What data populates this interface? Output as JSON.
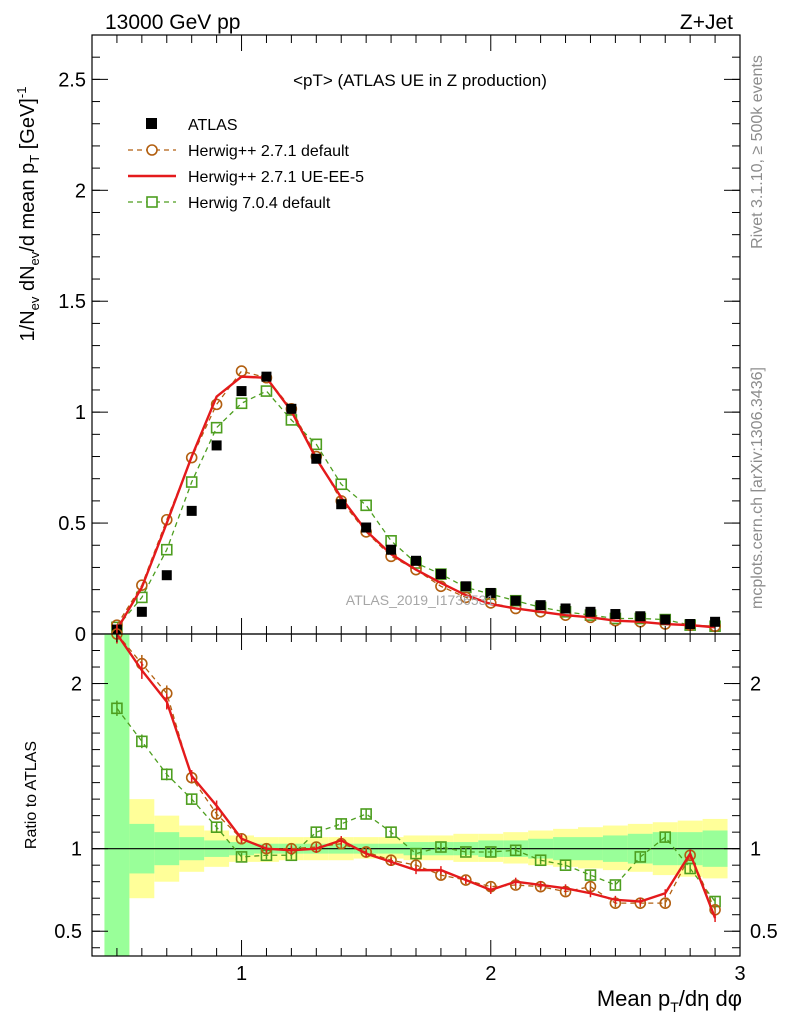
{
  "header": {
    "left": "13000 GeV pp",
    "right": "Z+Jet"
  },
  "side_labels": {
    "rivet": "Rivet 3.1.10, ≥ 500k events",
    "mcplots": "mcplots.cern.ch [arXiv:1306.3436]"
  },
  "watermark": "ATLAS_2019_I1736531",
  "chart_data": [
    {
      "type": "line",
      "title": "<pT> (ATLAS UE in Z production)",
      "ylabel": "1/N_ev dN_ev/d mean p_T [GeV]^-1",
      "xlabel": "Mean p_T/dη dφ",
      "xlim": [
        0.4,
        3.0
      ],
      "ylim": [
        0,
        2.7
      ],
      "yticks": [
        "0",
        "0.5",
        "1",
        "1.5",
        "2",
        "2.5"
      ],
      "xticks": [
        "1",
        "2",
        "3"
      ],
      "legend_position": "top-left",
      "x": [
        0.5,
        0.6,
        0.7,
        0.8,
        0.9,
        1.0,
        1.1,
        1.2,
        1.3,
        1.4,
        1.5,
        1.6,
        1.7,
        1.8,
        1.9,
        2.0,
        2.1,
        2.2,
        2.3,
        2.4,
        2.5,
        2.6,
        2.7,
        2.8,
        2.9
      ],
      "series": [
        {
          "name": "ATLAS",
          "color": "#000000",
          "style": "filled-square",
          "values": [
            0.02,
            0.1,
            0.265,
            0.555,
            0.85,
            1.095,
            1.16,
            1.015,
            0.79,
            0.585,
            0.48,
            0.38,
            0.33,
            0.27,
            0.215,
            0.185,
            0.15,
            0.13,
            0.115,
            0.1,
            0.09,
            0.08,
            0.065,
            0.045,
            0.055
          ]
        },
        {
          "name": "Herwig++ 2.7.1 default",
          "color": "#b25f10",
          "style": "dashed-open-circle",
          "values": [
            0.04,
            0.22,
            0.515,
            0.795,
            1.035,
            1.185,
            1.155,
            1.015,
            0.8,
            0.6,
            0.46,
            0.35,
            0.29,
            0.215,
            0.165,
            0.14,
            0.115,
            0.1,
            0.085,
            0.075,
            0.06,
            0.055,
            0.045,
            0.04,
            0.035
          ]
        },
        {
          "name": "Herwig++ 2.7.1 UE-EE-5",
          "color": "#e41a1c",
          "style": "solid",
          "values": [
            0.02,
            0.21,
            0.5,
            0.8,
            1.07,
            1.16,
            1.155,
            1.005,
            0.79,
            0.615,
            0.465,
            0.36,
            0.29,
            0.23,
            0.175,
            0.135,
            0.115,
            0.1,
            0.085,
            0.075,
            0.06,
            0.055,
            0.045,
            0.04,
            0.03
          ]
        },
        {
          "name": "Herwig 7.0.4 default",
          "color": "#4d9e1f",
          "style": "dashed-open-square",
          "values": [
            0.03,
            0.165,
            0.38,
            0.685,
            0.93,
            1.04,
            1.095,
            0.965,
            0.855,
            0.675,
            0.58,
            0.42,
            0.32,
            0.27,
            0.21,
            0.18,
            0.15,
            0.12,
            0.1,
            0.085,
            0.07,
            0.07,
            0.065,
            0.04,
            0.035
          ]
        }
      ]
    },
    {
      "type": "line",
      "ylabel": "Ratio to ATLAS",
      "xlim": [
        0.4,
        3.0
      ],
      "ylim": [
        0.35,
        2.3
      ],
      "yticks": [
        "0.5",
        "1",
        "2"
      ],
      "x": [
        0.5,
        0.6,
        0.7,
        0.8,
        0.9,
        1.0,
        1.1,
        1.2,
        1.3,
        1.4,
        1.5,
        1.6,
        1.7,
        1.8,
        1.9,
        2.0,
        2.1,
        2.2,
        2.3,
        2.4,
        2.5,
        2.6,
        2.7,
        2.8,
        2.9
      ],
      "bands": {
        "yellow": {
          "color": "#ffff99",
          "lo": [
            0.35,
            0.7,
            0.8,
            0.86,
            0.89,
            0.92,
            0.92,
            0.93,
            0.93,
            0.93,
            0.94,
            0.94,
            0.93,
            0.93,
            0.92,
            0.92,
            0.91,
            0.9,
            0.89,
            0.88,
            0.87,
            0.86,
            0.84,
            0.83,
            0.82
          ],
          "hi": [
            2.3,
            1.3,
            1.2,
            1.14,
            1.11,
            1.08,
            1.07,
            1.07,
            1.07,
            1.07,
            1.07,
            1.07,
            1.08,
            1.08,
            1.09,
            1.09,
            1.1,
            1.11,
            1.12,
            1.13,
            1.14,
            1.15,
            1.16,
            1.17,
            1.18
          ]
        },
        "green": {
          "color": "#99ff99",
          "lo": [
            0.35,
            0.85,
            0.9,
            0.93,
            0.95,
            0.96,
            0.97,
            0.97,
            0.97,
            0.97,
            0.97,
            0.97,
            0.96,
            0.96,
            0.96,
            0.95,
            0.95,
            0.94,
            0.93,
            0.93,
            0.92,
            0.91,
            0.9,
            0.9,
            0.89
          ],
          "hi": [
            2.3,
            1.15,
            1.1,
            1.07,
            1.05,
            1.04,
            1.03,
            1.03,
            1.03,
            1.03,
            1.03,
            1.03,
            1.04,
            1.04,
            1.04,
            1.05,
            1.05,
            1.06,
            1.07,
            1.07,
            1.08,
            1.09,
            1.1,
            1.1,
            1.11
          ]
        }
      },
      "series": [
        {
          "name": "Herwig++ 2.7.1 default",
          "color": "#b25f10",
          "style": "dashed-open-circle",
          "values": [
            2.3,
            2.12,
            1.94,
            1.43,
            1.21,
            1.06,
            1.0,
            1.0,
            1.01,
            1.03,
            0.98,
            0.93,
            0.9,
            0.84,
            0.81,
            0.77,
            0.78,
            0.77,
            0.74,
            0.77,
            0.67,
            0.67,
            0.67,
            0.96,
            0.63
          ]
        },
        {
          "name": "Herwig++ 2.7.1 UE-EE-5",
          "color": "#e41a1c",
          "style": "solid",
          "values": [
            2.3,
            2.08,
            1.89,
            1.44,
            1.26,
            1.06,
            1.0,
            0.99,
            1.0,
            1.05,
            0.97,
            0.92,
            0.87,
            0.87,
            0.81,
            0.75,
            0.8,
            0.78,
            0.76,
            0.73,
            0.69,
            0.68,
            0.73,
            0.97,
            0.58
          ]
        },
        {
          "name": "Herwig 7.0.4 default",
          "color": "#4d9e1f",
          "style": "dashed-open-square",
          "values": [
            1.85,
            1.65,
            1.45,
            1.3,
            1.13,
            0.95,
            0.96,
            0.96,
            1.1,
            1.15,
            1.21,
            1.1,
            0.97,
            1.01,
            0.98,
            0.98,
            0.99,
            0.93,
            0.9,
            0.84,
            0.78,
            0.95,
            1.07,
            0.88,
            0.68
          ]
        }
      ]
    }
  ]
}
